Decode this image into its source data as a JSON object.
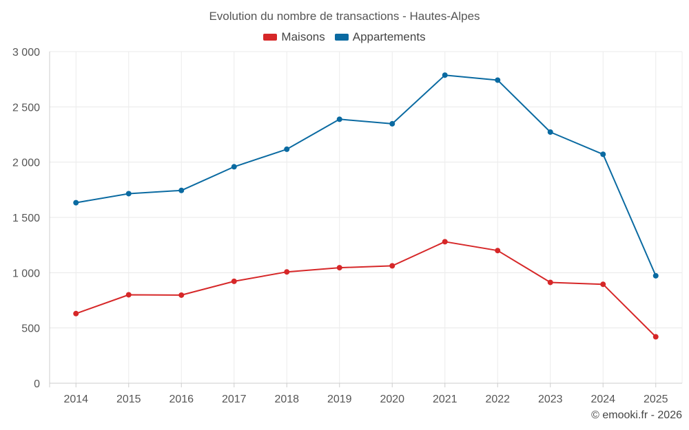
{
  "chart_data": {
    "type": "line",
    "title": "Evolution du nombre de transactions - Hautes-Alpes",
    "categories": [
      "2014",
      "2015",
      "2016",
      "2017",
      "2018",
      "2019",
      "2020",
      "2021",
      "2022",
      "2023",
      "2024",
      "2025"
    ],
    "series": [
      {
        "name": "Maisons",
        "color": "#d62728",
        "values": [
          630,
          800,
          797,
          922,
          1007,
          1045,
          1062,
          1280,
          1200,
          912,
          895,
          420
        ]
      },
      {
        "name": "Appartements",
        "color": "#0a6aa1",
        "values": [
          1633,
          1715,
          1744,
          1958,
          2117,
          2388,
          2347,
          2787,
          2742,
          2272,
          2071,
          972
        ]
      }
    ],
    "ylim": [
      0,
      3000
    ],
    "yticks": [
      0,
      500,
      1000,
      1500,
      2000,
      2500,
      3000
    ],
    "ytick_labels": [
      "0",
      "500",
      "1 000",
      "1 500",
      "2 000",
      "2 500",
      "3 000"
    ],
    "xlabel": "",
    "ylabel": "",
    "grid": true,
    "legend_position": "top-center"
  },
  "credit": "© emooki.fr - 2026"
}
